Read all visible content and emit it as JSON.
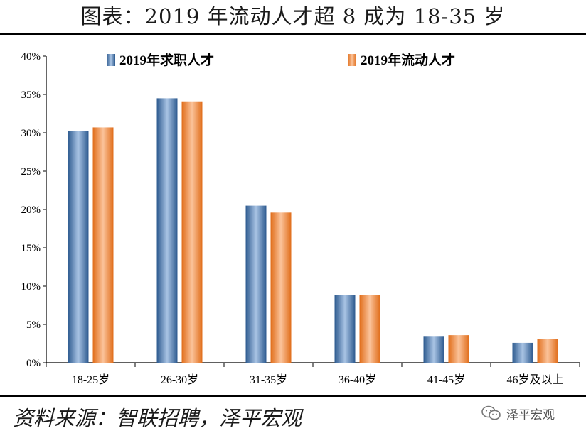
{
  "header": {
    "title": "图表：2019 年流动人才超 8 成为 18-35 岁"
  },
  "footer": {
    "source": "资料来源：智联招聘，泽平宏观",
    "watermark": "泽平宏观",
    "watermark_icon": "wechat-logo-icon"
  },
  "colors": {
    "series1": "#4f81bd",
    "series2": "#f79646"
  },
  "chart_data": {
    "type": "bar",
    "categories": [
      "18-25岁",
      "26-30岁",
      "31-35岁",
      "36-40岁",
      "41-45岁",
      "46岁及以上"
    ],
    "series": [
      {
        "name": "2019年求职人才",
        "values": [
          30.2,
          34.5,
          20.5,
          8.8,
          3.4,
          2.6
        ]
      },
      {
        "name": "2019年流动人才",
        "values": [
          30.7,
          34.1,
          19.6,
          8.8,
          3.6,
          3.1
        ]
      }
    ],
    "yticks": [
      "0%",
      "5%",
      "10%",
      "15%",
      "20%",
      "25%",
      "30%",
      "35%",
      "40%"
    ],
    "ylim": [
      0,
      40
    ],
    "unit": "%",
    "legend": "top",
    "grid": false
  }
}
